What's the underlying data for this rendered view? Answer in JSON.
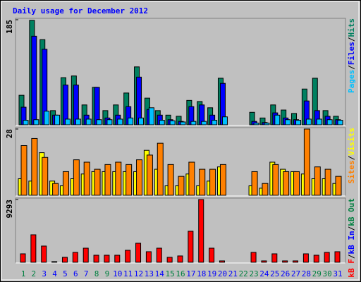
{
  "chart_data": {
    "type": "bar",
    "title": "Daily usage for December 2012",
    "categories": [
      "1",
      "2",
      "3",
      "4",
      "5",
      "6",
      "7",
      "8",
      "9",
      "10",
      "11",
      "12",
      "13",
      "14",
      "15",
      "16",
      "17",
      "18",
      "19",
      "20",
      "21",
      "22",
      "23",
      "24",
      "25",
      "26",
      "27",
      "28",
      "29",
      "30",
      "31"
    ],
    "category_color": "#008040",
    "weekend_color": "#008040",
    "weekday_color": "#0000ff",
    "weekend_indices": [
      0,
      1,
      7,
      8,
      14,
      15,
      21,
      22,
      28,
      29
    ],
    "legend_separator": "/",
    "panels": [
      {
        "ylim": [
          0,
          185
        ],
        "yticks": [
          185
        ],
        "series": [
          {
            "name": "Hits",
            "color": "#008060",
            "values": [
              52,
              184,
              150,
              25,
              83,
              86,
              35,
              66,
              25,
              35,
              56,
              102,
              47,
              25,
              17,
              15,
              43,
              41,
              30,
              82,
              0,
              0,
              22,
              12,
              35,
              26,
              20,
              63,
              82,
              25,
              15
            ]
          },
          {
            "name": "Files",
            "color": "#0000ff",
            "values": [
              31,
              156,
              133,
              17,
              70,
              70,
              17,
              66,
              12,
              17,
              32,
              84,
              27,
              17,
              9,
              6,
              32,
              35,
              17,
              73,
              0,
              0,
              6,
              4,
              21,
              12,
              9,
              42,
              25,
              15,
              9
            ]
          },
          {
            "name": "Pages",
            "color": "#00c0ff",
            "values": [
              8,
              9,
              24,
              17,
              10,
              10,
              10,
              9,
              9,
              10,
              12,
              12,
              30,
              8,
              7,
              5,
              6,
              6,
              8,
              14,
              0,
              0,
              3,
              3,
              17,
              9,
              8,
              10,
              10,
              9,
              8
            ]
          }
        ]
      },
      {
        "ylim": [
          0,
          28
        ],
        "yticks": [
          28
        ],
        "series": [
          {
            "name": "Visits",
            "color": "#ffff00",
            "values": [
              7,
              6,
              18,
              6,
              4,
              7,
              9,
              10,
              10,
              10,
              10,
              10,
              19,
              11,
              4,
              4,
              9,
              4,
              6,
              12,
              0,
              0,
              4,
              3,
              14,
              11,
              10,
              9,
              7,
              7,
              5
            ]
          },
          {
            "name": "Sites",
            "color": "#ff8000",
            "values": [
              21,
              24,
              16,
              5,
              10,
              15,
              14,
              11,
              13,
              14,
              13,
              15,
              17,
              22,
              13,
              8,
              14,
              11,
              11,
              13,
              0,
              0,
              10,
              5,
              13,
              10,
              10,
              28,
              12,
              11,
              8
            ]
          }
        ]
      },
      {
        "ylim": [
          0,
          9293
        ],
        "yticks": [
          9293
        ],
        "series": [
          {
            "name": "kB F",
            "color": "#ff0000",
            "values": [
              1253,
              4072,
              2402,
              100,
              731,
              1462,
              2088,
              1044,
              1044,
              1044,
              1775,
              2819,
              1566,
              2088,
              731,
              940,
              4594,
              9293,
              2088,
              209,
              0,
              0,
              1462,
              209,
              1253,
              209,
              209,
              1253,
              1044,
              1462,
              1566
            ]
          },
          {
            "name": "kB In",
            "color": "#0000ff"
          },
          {
            "name": "kB Out",
            "color": "#008040"
          }
        ]
      }
    ]
  }
}
